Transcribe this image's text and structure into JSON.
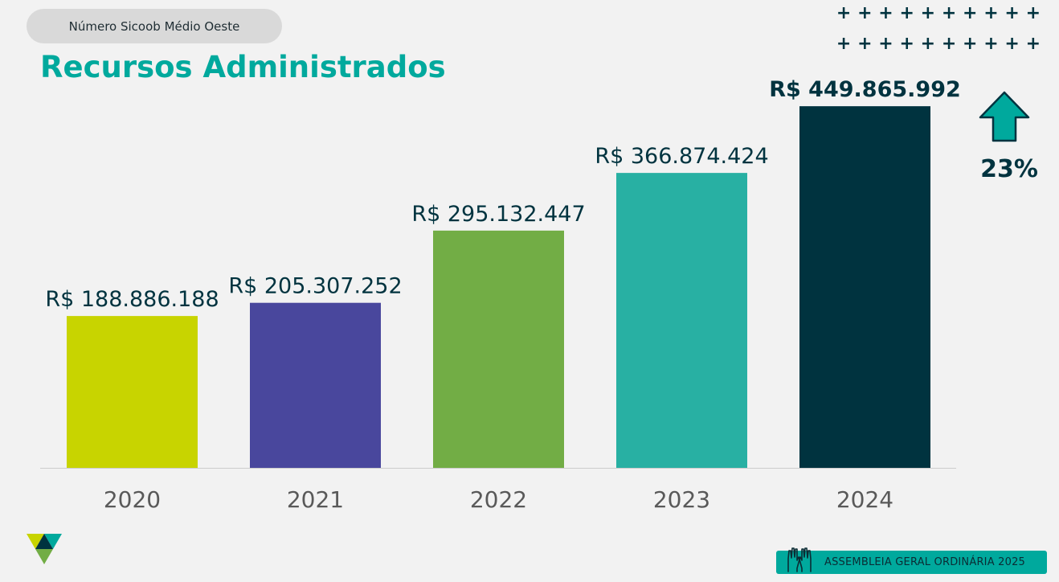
{
  "header": {
    "pill_label": "Número Sicoob Médio Oeste",
    "title": "Recursos Administrados"
  },
  "decoration": {
    "plus_rows": 2,
    "plus_cols": 10,
    "plus_glyph": "+"
  },
  "growth": {
    "icon": "arrow-up-icon",
    "label": "23%",
    "color": "#00a99d"
  },
  "footer": {
    "label": "ASSEMBLEIA GERAL ORDINÁRIA 2025",
    "icon": "raised-hands-icon",
    "color": "#00a99d"
  },
  "logo": {
    "icon": "sicoob-logo-icon"
  },
  "chart_data": {
    "type": "bar",
    "categories": [
      "2020",
      "2021",
      "2022",
      "2023",
      "2024"
    ],
    "values": [
      188886188,
      205307252,
      295132447,
      366874424,
      449865992
    ],
    "value_labels": [
      "R$ 188.886.188",
      "R$ 205.307.252",
      "R$ 295.132.447",
      "R$ 366.874.424",
      "R$ 449.865.992"
    ],
    "colors": [
      "#c8d400",
      "#49479d",
      "#72ad45",
      "#28b0a3",
      "#00333f"
    ],
    "highlight_index": 4,
    "ylim": [
      0,
      500000000
    ],
    "grid": false,
    "title": "",
    "xlabel": "",
    "ylabel": ""
  }
}
